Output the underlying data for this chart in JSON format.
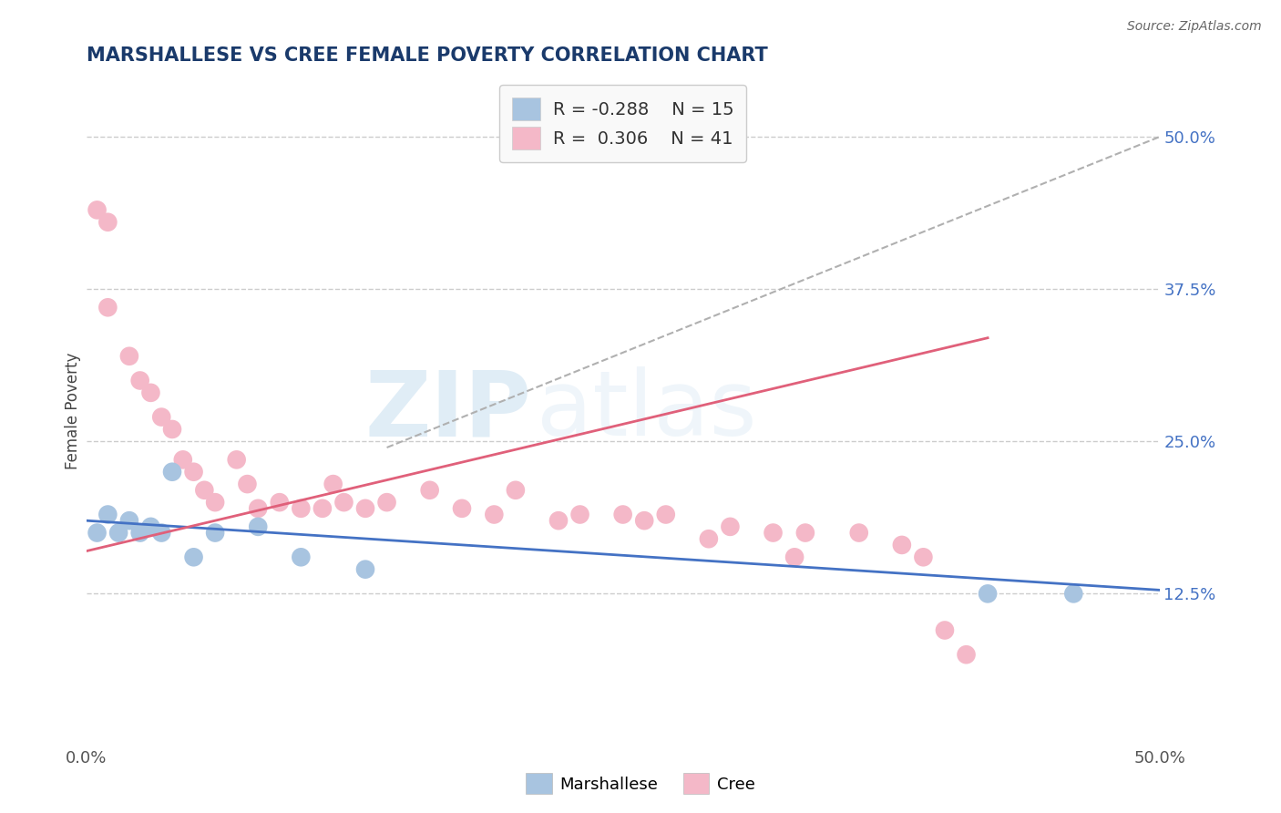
{
  "title": "MARSHALLESE VS CREE FEMALE POVERTY CORRELATION CHART",
  "source": "Source: ZipAtlas.com",
  "ylabel": "Female Poverty",
  "xlim": [
    0.0,
    0.5
  ],
  "ylim": [
    0.0,
    0.55
  ],
  "marshallese_color": "#a8c4e0",
  "cree_color": "#f4b8c8",
  "marshallese_line_color": "#4472c4",
  "cree_line_color": "#e0607a",
  "r_marshallese": -0.288,
  "n_marshallese": 15,
  "r_cree": 0.306,
  "n_cree": 41,
  "marshallese_x": [
    0.005,
    0.01,
    0.015,
    0.02,
    0.025,
    0.03,
    0.035,
    0.04,
    0.05,
    0.06,
    0.08,
    0.1,
    0.13,
    0.42,
    0.46
  ],
  "marshallese_y": [
    0.175,
    0.19,
    0.175,
    0.185,
    0.175,
    0.18,
    0.175,
    0.225,
    0.155,
    0.175,
    0.18,
    0.155,
    0.145,
    0.125,
    0.125
  ],
  "cree_x": [
    0.005,
    0.01,
    0.01,
    0.02,
    0.025,
    0.03,
    0.035,
    0.04,
    0.045,
    0.05,
    0.055,
    0.06,
    0.07,
    0.075,
    0.08,
    0.09,
    0.1,
    0.11,
    0.115,
    0.12,
    0.13,
    0.14,
    0.16,
    0.175,
    0.19,
    0.2,
    0.22,
    0.23,
    0.25,
    0.26,
    0.27,
    0.29,
    0.3,
    0.32,
    0.33,
    0.335,
    0.36,
    0.38,
    0.39,
    0.4,
    0.41
  ],
  "cree_y": [
    0.44,
    0.43,
    0.36,
    0.32,
    0.3,
    0.29,
    0.27,
    0.26,
    0.235,
    0.225,
    0.21,
    0.2,
    0.235,
    0.215,
    0.195,
    0.2,
    0.195,
    0.195,
    0.215,
    0.2,
    0.195,
    0.2,
    0.21,
    0.195,
    0.19,
    0.21,
    0.185,
    0.19,
    0.19,
    0.185,
    0.19,
    0.17,
    0.18,
    0.175,
    0.155,
    0.175,
    0.175,
    0.165,
    0.155,
    0.095,
    0.075
  ],
  "marsh_line_x0": 0.0,
  "marsh_line_x1": 0.5,
  "marsh_line_y0": 0.185,
  "marsh_line_y1": 0.128,
  "cree_line_x0": 0.0,
  "cree_line_x1": 0.42,
  "cree_line_y0": 0.16,
  "cree_line_y1": 0.335,
  "dash_line_x0": 0.14,
  "dash_line_x1": 0.5,
  "dash_line_y0": 0.245,
  "dash_line_y1": 0.5,
  "ytick_positions": [
    0.125,
    0.25,
    0.375,
    0.5
  ],
  "ytick_labels": [
    "12.5%",
    "25.0%",
    "37.5%",
    "50.0%"
  ],
  "background_color": "#ffffff",
  "grid_color": "#cccccc",
  "title_color": "#1a3a6b",
  "tick_color": "#555555",
  "right_tick_color": "#4472c4",
  "watermark_zip": "ZIP",
  "watermark_atlas": "atlas"
}
